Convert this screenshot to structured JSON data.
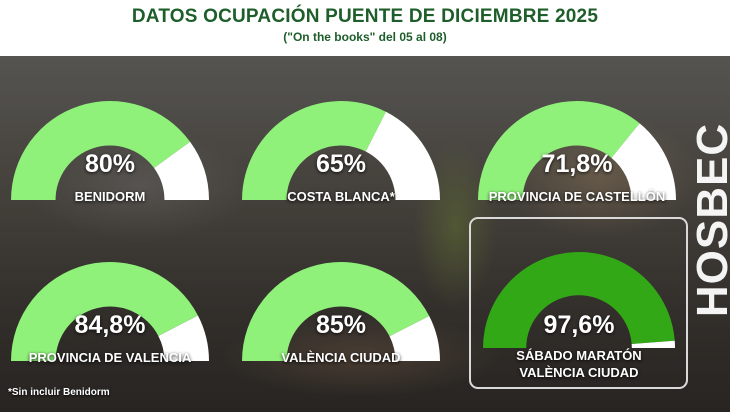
{
  "header": {
    "title": "DATOS OCUPACIÓN PUENTE DE DICIEMBRE 2025",
    "subtitle": "(\"On the books\" del 05 al 08)"
  },
  "colors": {
    "title": "#1d5e2a",
    "gauge_light": "#8ff07a",
    "gauge_dark": "#33a817",
    "gauge_empty": "#ffffff"
  },
  "gauges": [
    {
      "value": 80,
      "value_text": "80%",
      "label": "BENIDORM",
      "color": "#8ff07a"
    },
    {
      "value": 65,
      "value_text": "65%",
      "label": "COSTA BLANCA*",
      "color": "#8ff07a"
    },
    {
      "value": 71.8,
      "value_text": "71,8%",
      "label": "PROVINCIA DE CASTELLÓN",
      "color": "#8ff07a"
    },
    {
      "value": 84.8,
      "value_text": "84,8%",
      "label": "PROVINCIA DE VALENCIA",
      "color": "#8ff07a"
    },
    {
      "value": 85,
      "value_text": "85%",
      "label": "VALÈNCIA CIUDAD",
      "color": "#8ff07a"
    },
    {
      "value": 97.6,
      "value_text": "97,6%",
      "label": "SÁBADO MARATÓN",
      "label2": "VALÈNCIA CIUDAD",
      "color": "#33a817"
    }
  ],
  "footnote": "*Sin incluir Benidorm",
  "brand": {
    "name": "HOSBEC"
  }
}
